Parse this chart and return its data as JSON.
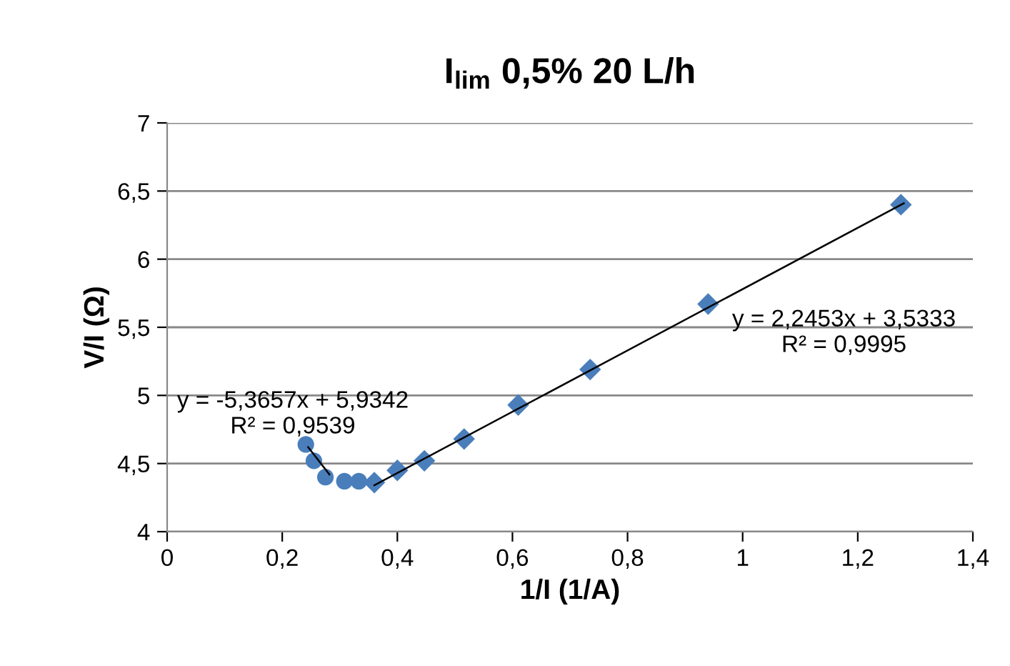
{
  "chart_data": {
    "type": "scatter",
    "title": "I$_{lim}$ 0,5% 20 L/h",
    "xlabel": "1/I (1/A)",
    "ylabel": "V/I (Ω)",
    "series": [
      {
        "marker": "diamond",
        "color": "#4a7ebb",
        "x": [
          0.36,
          0.4,
          0.447,
          0.516,
          0.61,
          0.735,
          0.94,
          1.275
        ],
        "values": [
          4.36,
          4.45,
          4.52,
          4.68,
          4.93,
          5.19,
          5.67,
          6.4
        ]
      },
      {
        "marker": "circle",
        "color": "#4a7ebb",
        "x": [
          0.241,
          0.255,
          0.275,
          0.308,
          0.333
        ],
        "values": [
          4.64,
          4.52,
          4.4,
          4.37,
          4.37
        ]
      },
      {
        "type": "line",
        "marker": "none",
        "color": "#000000",
        "x": [
          0.36,
          1.28
        ],
        "values": [
          4.34,
          6.41
        ]
      },
      {
        "type": "line",
        "marker": "none",
        "color": "#000000",
        "x": [
          0.245,
          0.282
        ],
        "values": [
          4.62,
          4.42
        ]
      }
    ],
    "annotations": [
      "y = 2,2453x + 3,5333\nR² = 0,9995",
      "y = -5,3657x + 5,9342\nR² = 0,9539"
    ],
    "xlim": [
      0,
      1.4
    ],
    "xticks": [
      0,
      {
        "value": 0.2,
        "label": "0,2"
      },
      {
        "value": 0.4,
        "label": "0,4"
      },
      {
        "value": 0.6,
        "label": "0,6"
      },
      {
        "value": 0.8,
        "label": "0,8"
      },
      1,
      {
        "value": 1.2,
        "label": "1,2"
      },
      {
        "value": 1.4,
        "label": "1,4"
      }
    ],
    "ylim": [
      4,
      7
    ],
    "yticks": [
      4,
      {
        "value": 4.5,
        "label": "4,5"
      },
      5,
      {
        "value": 5.5,
        "label": "5,5"
      },
      6,
      {
        "value": 6.5,
        "label": "6,5"
      },
      7
    ],
    "grid": "y",
    "legend": false
  }
}
